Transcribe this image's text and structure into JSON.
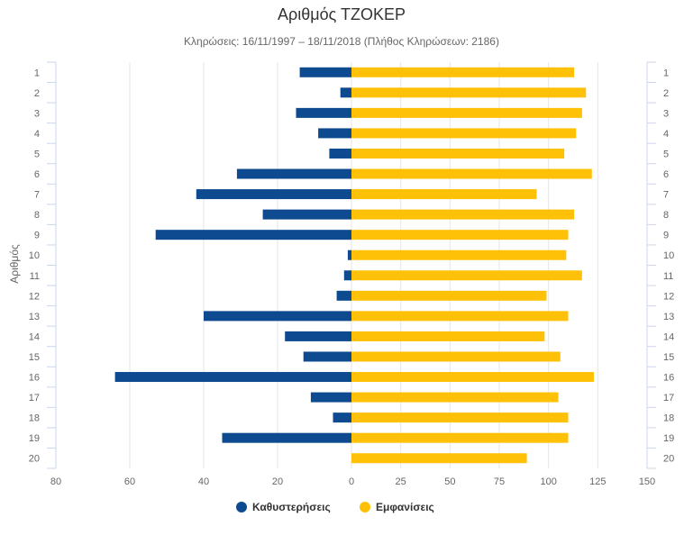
{
  "chart_data": {
    "type": "bar",
    "orientation": "horizontal",
    "title": "Αριθμός ΤΖΟΚΕΡ",
    "subtitle": "Κληρώσεις: 16/11/1997 – 18/11/2018 (Πλήθος Κληρώσεων: 2186)",
    "ylabel": "Αριθμός",
    "categories": [
      "1",
      "2",
      "3",
      "4",
      "5",
      "6",
      "7",
      "8",
      "9",
      "10",
      "11",
      "12",
      "13",
      "14",
      "15",
      "16",
      "17",
      "18",
      "19",
      "20"
    ],
    "series": [
      {
        "name": "Καθυστερήσεις",
        "color": "#0d4a8f",
        "values": [
          14,
          3,
          15,
          9,
          6,
          31,
          42,
          24,
          53,
          1,
          2,
          4,
          40,
          18,
          13,
          64,
          11,
          5,
          35,
          0
        ]
      },
      {
        "name": "Εμφανίσεις",
        "color": "#ffc107",
        "values": [
          113,
          119,
          117,
          114,
          108,
          122,
          94,
          113,
          110,
          109,
          117,
          99,
          110,
          98,
          106,
          123,
          105,
          110,
          110,
          89
        ]
      }
    ],
    "x_left_axis": {
      "min": 80,
      "max": 0,
      "ticks": [
        80,
        60,
        40,
        20,
        0
      ]
    },
    "x_right_axis": {
      "min": 0,
      "max": 150,
      "ticks": [
        0,
        25,
        50,
        75,
        100,
        125,
        150
      ]
    },
    "grid": true,
    "legend_position": "bottom-center"
  }
}
